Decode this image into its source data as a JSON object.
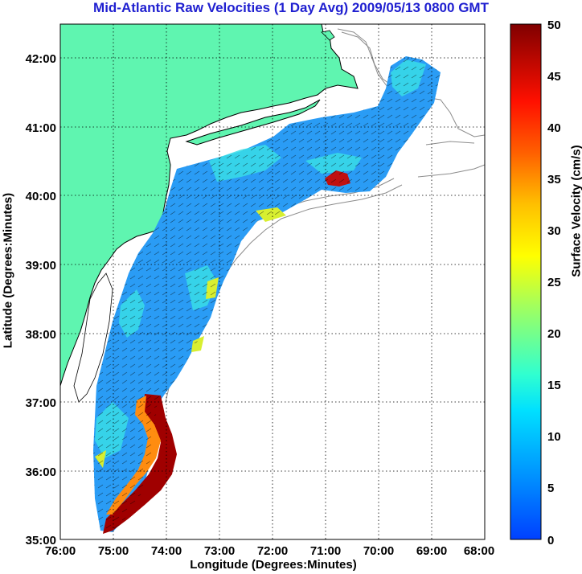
{
  "title": "Mid-Atlantic Raw Velocities (1 Day Avg) 2009/05/13 0800 GMT",
  "xlabel": "Longitude (Degrees:Minutes)",
  "ylabel": "Latitude (Degrees:Minutes)",
  "colorbar_label": "Surface Velocity (cm/s)",
  "x_ticks": [
    "76:00",
    "75:00",
    "74:00",
    "73:00",
    "72:00",
    "71:00",
    "70:00",
    "69:00",
    "68:00"
  ],
  "y_ticks": [
    "42:00",
    "41:00",
    "40:00",
    "39:00",
    "38:00",
    "37:00",
    "36:00",
    "35:00"
  ],
  "colorbar_ticks": [
    "50",
    "45",
    "40",
    "35",
    "30",
    "25",
    "20",
    "15",
    "10",
    "5",
    "0"
  ],
  "colors": {
    "title": "#1f1fd0",
    "land": "#5ff5b0",
    "low_velocity": "#2090ff",
    "mid_velocity": "#30e0e0",
    "high_velocity": "#8b0000",
    "bathymetry": "#8c8c8c"
  },
  "chart_data": {
    "type": "heatmap",
    "title": "Mid-Atlantic Raw Velocities (1 Day Avg) 2009/05/13 0800 GMT",
    "xlabel": "Longitude (Degrees:Minutes)",
    "ylabel": "Latitude (Degrees:Minutes)",
    "xlim": [
      -76,
      -68
    ],
    "ylim": [
      35,
      42.5
    ],
    "colorbar": {
      "label": "Surface Velocity (cm/s)",
      "range": [
        0,
        50
      ],
      "colormap": "jet"
    },
    "grid": true
  }
}
